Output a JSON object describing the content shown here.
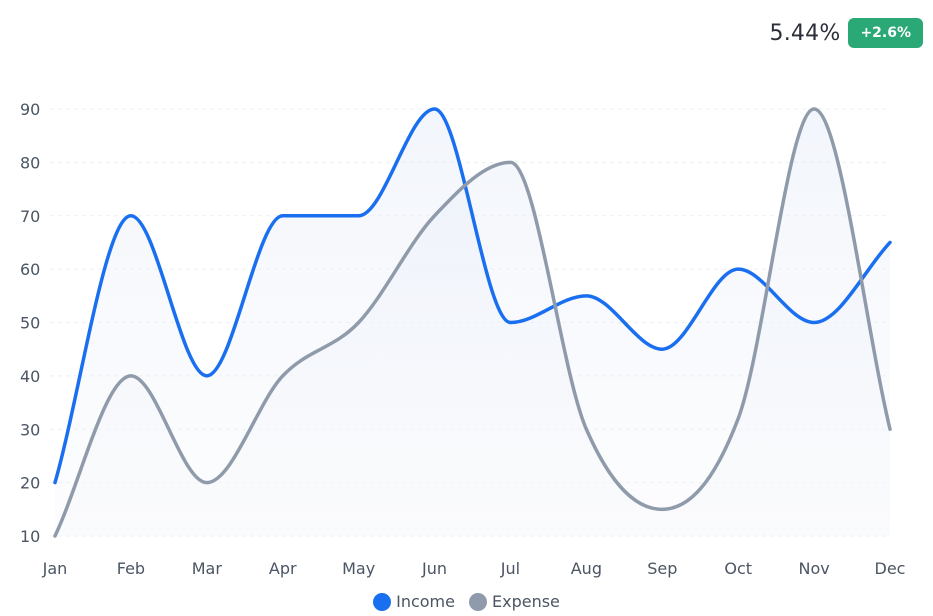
{
  "header": {
    "stat_value": "5.44%",
    "stat_change": "+2.6%",
    "badge_color": "#2aa876"
  },
  "chart_data": {
    "type": "line",
    "smooth": true,
    "categories": [
      "Jan",
      "Feb",
      "Mar",
      "Apr",
      "May",
      "Jun",
      "Jul",
      "Aug",
      "Sep",
      "Oct",
      "Nov",
      "Dec"
    ],
    "series": [
      {
        "name": "Income",
        "color": "#1a6ff0",
        "values": [
          20,
          70,
          40,
          70,
          70,
          90,
          50,
          55,
          45,
          60,
          50,
          65
        ]
      },
      {
        "name": "Expense",
        "color": "#8f9bab",
        "values": [
          10,
          40,
          20,
          40,
          50,
          70,
          80,
          30,
          15,
          32,
          90,
          30
        ]
      }
    ],
    "yticks": [
      10,
      20,
      30,
      40,
      50,
      60,
      70,
      80,
      90
    ],
    "ylim": [
      10,
      90
    ],
    "grid": true,
    "legend": "bottom"
  }
}
